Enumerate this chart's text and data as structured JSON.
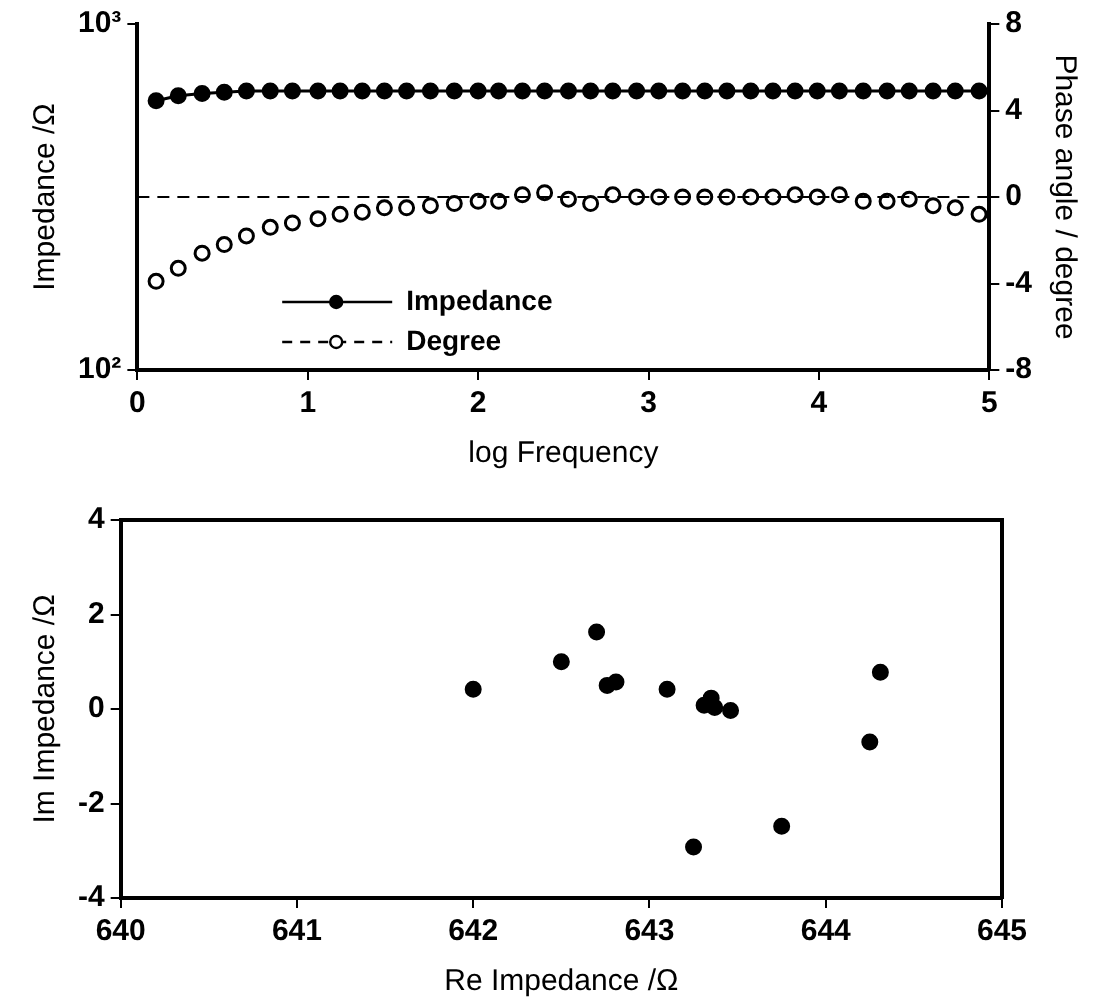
{
  "chart_data": [
    {
      "type": "line",
      "xlabel": "log Frequency",
      "ylabel": "Impedance /Ω",
      "y2label": "Phase angle / degree",
      "log": "y",
      "xlim": [
        0,
        5
      ],
      "xticks": [
        0,
        1,
        2,
        3,
        4,
        5
      ],
      "ylim": [
        100,
        1000
      ],
      "yticks": [
        {
          "value": 100,
          "label": "10²"
        },
        {
          "value": 1000,
          "label": "10³"
        }
      ],
      "y2lim": [
        -8,
        8
      ],
      "y2ticks": [
        -8,
        -4,
        0,
        4,
        8
      ],
      "grid": false,
      "legend": "bottom left",
      "x": [
        0.11,
        0.24,
        0.38,
        0.51,
        0.64,
        0.78,
        0.91,
        1.06,
        1.19,
        1.32,
        1.45,
        1.58,
        1.72,
        1.86,
        2.0,
        2.12,
        2.26,
        2.39,
        2.53,
        2.66,
        2.79,
        2.93,
        3.06,
        3.2,
        3.33,
        3.46,
        3.6,
        3.73,
        3.86,
        3.99,
        4.12,
        4.26,
        4.4,
        4.53,
        4.67,
        4.8,
        4.94
      ],
      "series": [
        {
          "name": "Impedance",
          "color": "#000000",
          "marker": "circle",
          "line_style": "solid",
          "values": [
            600,
            620,
            630,
            635,
            640,
            640,
            640,
            640,
            640,
            640,
            640,
            640,
            640,
            640,
            640,
            640,
            640,
            640,
            640,
            640,
            640,
            640,
            640,
            640,
            640,
            640,
            640,
            640,
            640,
            640,
            640,
            640,
            640,
            640,
            640,
            640,
            640
          ]
        },
        {
          "name": "Degree",
          "type": "scatter",
          "axis": "y2",
          "color": "#000000",
          "marker": "circle",
          "values": [
            -3.9,
            -3.3,
            -2.6,
            -2.2,
            -1.8,
            -1.4,
            -1.2,
            -1.0,
            -0.8,
            -0.7,
            -0.5,
            -0.5,
            -0.4,
            -0.3,
            -0.2,
            -0.2,
            0.1,
            0.2,
            -0.1,
            -0.3,
            0.1,
            0.0,
            0.0,
            0.0,
            0.0,
            0.0,
            0.0,
            0.0,
            0.1,
            0.0,
            0.1,
            -0.2,
            -0.2,
            -0.1,
            -0.4,
            -0.5,
            -0.8
          ]
        }
      ],
      "ref_lines": [
        {
          "axis": "y2",
          "value": 0,
          "color": "#000000",
          "line_style": "dashed"
        }
      ]
    },
    {
      "type": "scatter",
      "xlabel": "Re Impedance /Ω",
      "ylabel": "Im Impedance /Ω",
      "xlim": [
        640,
        645
      ],
      "xticks": [
        640,
        641,
        642,
        643,
        644,
        645
      ],
      "ylim": [
        -4,
        4
      ],
      "yticks": [
        -4,
        -2,
        0,
        2,
        4
      ],
      "grid": false,
      "marker": "circle",
      "x": [
        642.0,
        642.5,
        642.7,
        642.76,
        642.81,
        643.1,
        643.35,
        643.31,
        643.37,
        643.46,
        644.31,
        644.25,
        643.75,
        643.25
      ],
      "series": [
        {
          "color": "#000000",
          "values": [
            0.42,
            1.0,
            1.63,
            0.5,
            0.57,
            0.42,
            0.23,
            0.08,
            0.03,
            -0.03,
            0.78,
            -0.7,
            -2.48,
            -2.92
          ]
        }
      ]
    }
  ]
}
